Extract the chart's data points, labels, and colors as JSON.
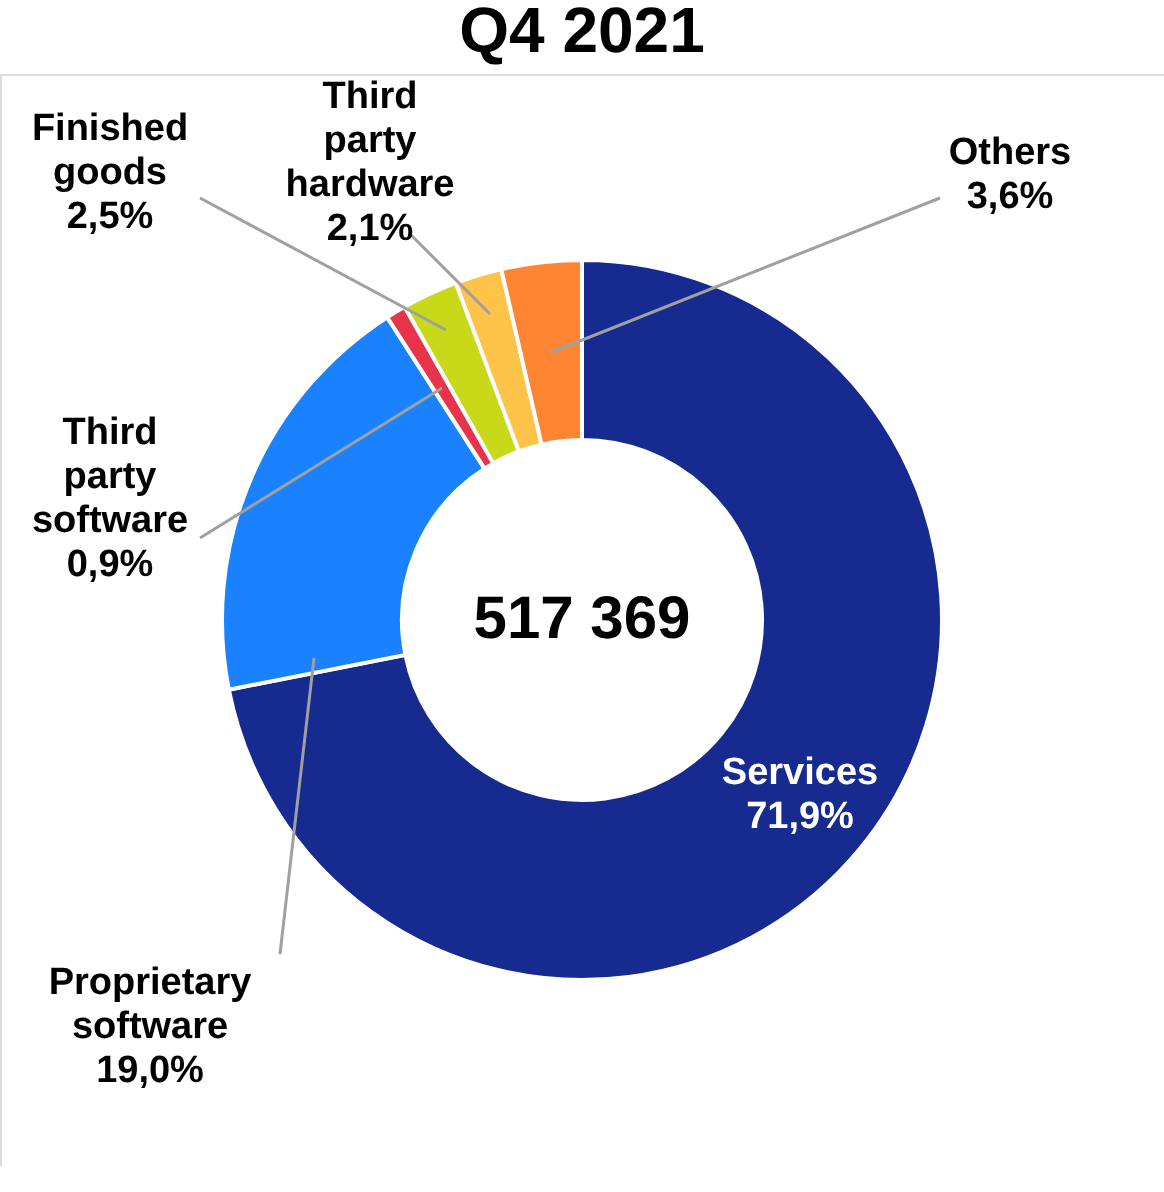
{
  "chart_data": {
    "type": "donut",
    "title": "Q4 2021",
    "categories": [
      "Services",
      "Proprietary software",
      "Third party software",
      "Finished goods",
      "Third party hardware",
      "Others"
    ],
    "values": [
      71.9,
      19.0,
      0.9,
      2.5,
      2.1,
      3.6
    ],
    "colors": [
      "#162a8f",
      "#1a82ff",
      "#e8344a",
      "#c8d91a",
      "#ffc34a",
      "#ff8533"
    ],
    "value_labels": [
      "71,9%",
      "19,0%",
      "0,9%",
      "2,5%",
      "2,1%",
      "3,6%"
    ],
    "annotations": [
      "517 369"
    ]
  }
}
